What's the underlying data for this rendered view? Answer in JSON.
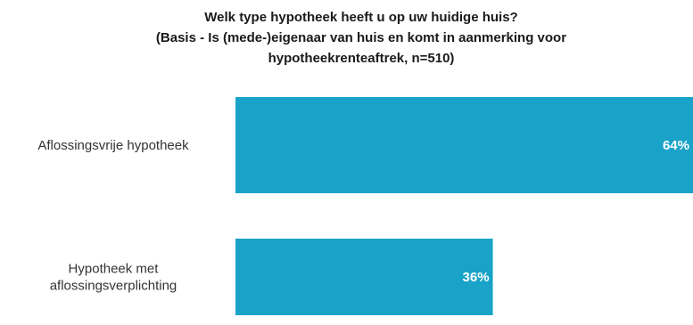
{
  "chart_data": {
    "type": "bar",
    "orientation": "horizontal",
    "title_lines": [
      "Welk type hypotheek heeft u op uw huidige huis?",
      "(Basis - Is (mede-)eigenaar van huis en komt in aanmerking voor",
      "hypotheekrenteaftrek, n=510)"
    ],
    "categories": [
      [
        "Aflossingsvrije hypotheek"
      ],
      [
        "Hypotheek met",
        "aflossingsverplichting"
      ]
    ],
    "values": [
      64,
      36
    ],
    "value_labels": [
      "64%",
      "36%"
    ],
    "xlim": [
      0,
      64
    ],
    "bar_color": "#1aa3c8",
    "label_color": "#ffffff",
    "grid": false,
    "legend": "none"
  }
}
